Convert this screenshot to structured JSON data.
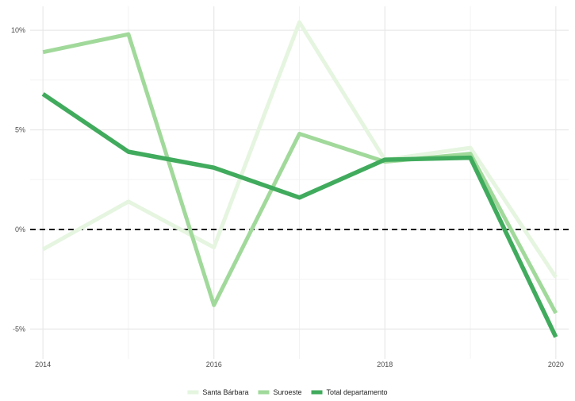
{
  "chart_data": {
    "type": "line",
    "x": [
      2014,
      2015,
      2016,
      2017,
      2018,
      2019,
      2020
    ],
    "x_tick_labels": [
      "2014",
      "2016",
      "2018",
      "2020"
    ],
    "y_ticks": [
      10,
      5,
      0,
      -5
    ],
    "y_tick_labels": [
      "10%",
      "5%",
      "0%",
      "-5%"
    ],
    "xlim": [
      2013.85,
      2020.15
    ],
    "ylim": [
      -6.5,
      11.2
    ],
    "grid": true,
    "reference_line": 0,
    "legend_position": "bottom",
    "series": [
      {
        "name": "Santa Bárbara",
        "color": "#e5f5e0",
        "values": [
          -1.0,
          1.4,
          -0.9,
          10.4,
          3.5,
          4.1,
          -2.4
        ]
      },
      {
        "name": "Suroeste",
        "color": "#a1d99b",
        "values": [
          8.9,
          9.8,
          -3.8,
          4.8,
          3.4,
          3.8,
          -4.2
        ]
      },
      {
        "name": "Total departamento",
        "color": "#41ab5d",
        "values": [
          6.8,
          3.9,
          3.1,
          1.6,
          3.5,
          3.6,
          -5.4
        ]
      }
    ]
  }
}
